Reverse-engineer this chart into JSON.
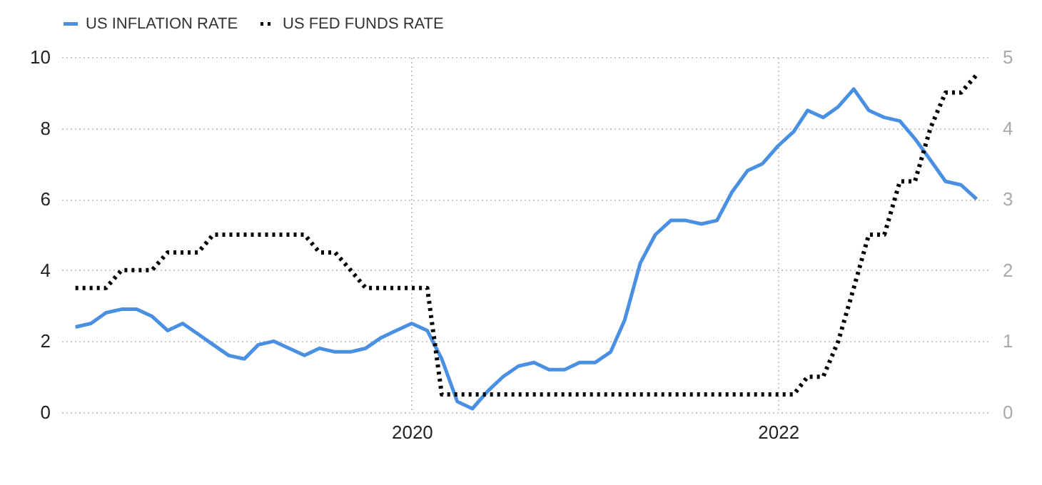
{
  "chart_data": {
    "type": "line",
    "x": [
      "2018-03",
      "2018-04",
      "2018-05",
      "2018-06",
      "2018-07",
      "2018-08",
      "2018-09",
      "2018-10",
      "2018-11",
      "2018-12",
      "2019-01",
      "2019-02",
      "2019-03",
      "2019-04",
      "2019-05",
      "2019-06",
      "2019-07",
      "2019-08",
      "2019-09",
      "2019-10",
      "2019-11",
      "2019-12",
      "2020-01",
      "2020-02",
      "2020-03",
      "2020-04",
      "2020-05",
      "2020-06",
      "2020-07",
      "2020-08",
      "2020-09",
      "2020-10",
      "2020-11",
      "2020-12",
      "2021-01",
      "2021-02",
      "2021-03",
      "2021-04",
      "2021-05",
      "2021-06",
      "2021-07",
      "2021-08",
      "2021-09",
      "2021-10",
      "2021-11",
      "2021-12",
      "2022-01",
      "2022-02",
      "2022-03",
      "2022-04",
      "2022-05",
      "2022-06",
      "2022-07",
      "2022-08",
      "2022-09",
      "2022-10",
      "2022-11",
      "2022-12",
      "2023-01",
      "2023-02"
    ],
    "series": [
      {
        "name": "US INFLATION RATE",
        "color": "#4a90e2",
        "line_style": "solid",
        "values": [
          2.4,
          2.5,
          2.8,
          2.9,
          2.9,
          2.7,
          2.3,
          2.5,
          2.2,
          1.9,
          1.6,
          1.5,
          1.9,
          2.0,
          1.8,
          1.6,
          1.8,
          1.7,
          1.7,
          1.8,
          2.1,
          2.3,
          2.5,
          2.3,
          1.5,
          0.3,
          0.1,
          0.6,
          1.0,
          1.3,
          1.4,
          1.2,
          1.2,
          1.4,
          1.4,
          1.7,
          2.6,
          4.2,
          5.0,
          5.4,
          5.4,
          5.3,
          5.4,
          6.2,
          6.8,
          7.0,
          7.5,
          7.9,
          8.5,
          8.3,
          8.6,
          9.1,
          8.5,
          8.3,
          8.2,
          7.7,
          7.1,
          6.5,
          6.4,
          6.0
        ]
      },
      {
        "name": "US FED FUNDS RATE",
        "color": "#000000",
        "line_style": "dotted",
        "axis": "y2",
        "values": [
          1.75,
          1.75,
          1.75,
          2.0,
          2.0,
          2.0,
          2.25,
          2.25,
          2.25,
          2.5,
          2.5,
          2.5,
          2.5,
          2.5,
          2.5,
          2.5,
          2.25,
          2.25,
          2.0,
          1.75,
          1.75,
          1.75,
          1.75,
          1.75,
          0.25,
          0.25,
          0.25,
          0.25,
          0.25,
          0.25,
          0.25,
          0.25,
          0.25,
          0.25,
          0.25,
          0.25,
          0.25,
          0.25,
          0.25,
          0.25,
          0.25,
          0.25,
          0.25,
          0.25,
          0.25,
          0.25,
          0.25,
          0.25,
          0.5,
          0.5,
          1.0,
          1.75,
          2.5,
          2.5,
          3.25,
          3.25,
          4.0,
          4.5,
          4.5,
          4.75
        ]
      }
    ],
    "xlim": [
      "2018-02",
      "2023-03"
    ],
    "xticks": [
      "2020",
      "2022"
    ],
    "ylim": [
      0,
      10
    ],
    "yticks": [
      0,
      2,
      4,
      6,
      8,
      10
    ],
    "y2lim": [
      0,
      5
    ],
    "y2ticks": [
      0,
      1,
      2,
      3,
      4,
      5
    ],
    "grid": true,
    "legend": "top left"
  }
}
